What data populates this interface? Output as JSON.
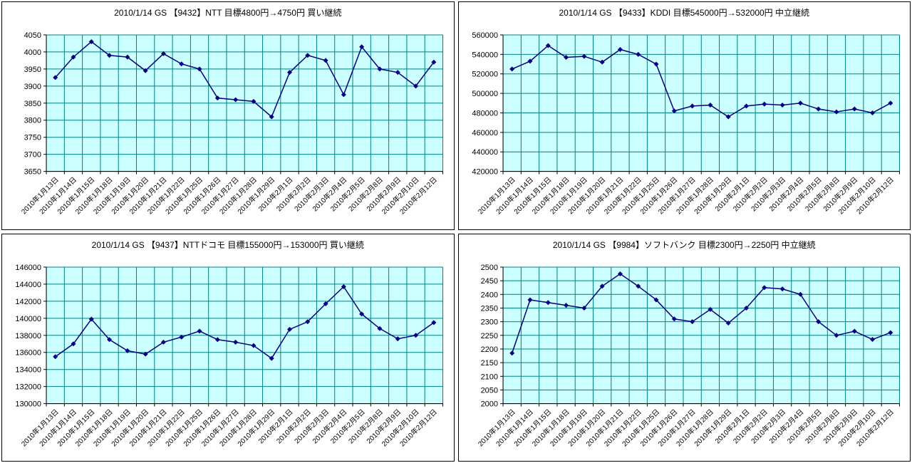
{
  "colors": {
    "plot_bg": "#CCFFFF",
    "grid": "#008080",
    "line": "#000080",
    "axis": "#000000",
    "panel_border": "#000000",
    "text": "#000000"
  },
  "chart_data": [
    {
      "type": "line",
      "title": "2010/1/14 GS 【9432】NTT 目標4800円→4750円 買い継続",
      "categories": [
        "2010年1月13日",
        "2010年1月14日",
        "2010年1月15日",
        "2010年1月18日",
        "2010年1月19日",
        "2010年1月20日",
        "2010年1月21日",
        "2010年1月22日",
        "2010年1月25日",
        "2010年1月26日",
        "2010年1月27日",
        "2010年1月28日",
        "2010年1月29日",
        "2010年2月1日",
        "2010年2月2日",
        "2010年2月3日",
        "2010年2月4日",
        "2010年2月5日",
        "2010年2月8日",
        "2010年2月9日",
        "2010年2月10日",
        "2010年2月12日"
      ],
      "values": [
        3925,
        3985,
        4030,
        3990,
        3985,
        3945,
        3995,
        3965,
        3950,
        3865,
        3860,
        3855,
        3810,
        3940,
        3990,
        3975,
        3875,
        4015,
        3950,
        3940,
        3900,
        3970
      ],
      "ylim": [
        3650,
        4050
      ],
      "ytick_step": 50,
      "xlabel": "",
      "ylabel": "",
      "grid": true,
      "legend": "none",
      "marker": "diamond"
    },
    {
      "type": "line",
      "title": "2010/1/14 GS 【9433】KDDI 目標545000円→532000円 中立継続",
      "categories": [
        "2010年1月13日",
        "2010年1月14日",
        "2010年1月15日",
        "2010年1月18日",
        "2010年1月19日",
        "2010年1月20日",
        "2010年1月21日",
        "2010年1月22日",
        "2010年1月25日",
        "2010年1月26日",
        "2010年1月27日",
        "2010年1月28日",
        "2010年1月29日",
        "2010年2月1日",
        "2010年2月2日",
        "2010年2月3日",
        "2010年2月4日",
        "2010年2月5日",
        "2010年2月8日",
        "2010年2月9日",
        "2010年2月10日",
        "2010年2月12日"
      ],
      "values": [
        525000,
        533000,
        549000,
        537000,
        538000,
        532000,
        545000,
        540000,
        530000,
        482000,
        487000,
        488000,
        476000,
        487000,
        489000,
        488000,
        490000,
        484000,
        481000,
        484000,
        480000,
        490000
      ],
      "ylim": [
        420000,
        560000
      ],
      "ytick_step": 20000,
      "xlabel": "",
      "ylabel": "",
      "grid": true,
      "legend": "none",
      "marker": "diamond"
    },
    {
      "type": "line",
      "title": "2010/1/14 GS 【9437】NTTドコモ 目標155000円→153000円 買い継続",
      "categories": [
        "2010年1月13日",
        "2010年1月14日",
        "2010年1月15日",
        "2010年1月18日",
        "2010年1月19日",
        "2010年1月20日",
        "2010年1月21日",
        "2010年1月22日",
        "2010年1月25日",
        "2010年1月26日",
        "2010年1月27日",
        "2010年1月28日",
        "2010年1月29日",
        "2010年2月1日",
        "2010年2月2日",
        "2010年2月3日",
        "2010年2月4日",
        "2010年2月5日",
        "2010年2月8日",
        "2010年2月9日",
        "2010年2月10日",
        "2010年2月12日"
      ],
      "values": [
        135500,
        137000,
        139900,
        137500,
        136200,
        135800,
        137200,
        137800,
        138500,
        137500,
        137200,
        136800,
        135300,
        138700,
        139600,
        141700,
        143700,
        140500,
        138800,
        137600,
        138000,
        139500
      ],
      "ylim": [
        130000,
        146000
      ],
      "ytick_step": 2000,
      "xlabel": "",
      "ylabel": "",
      "grid": true,
      "legend": "none",
      "marker": "diamond"
    },
    {
      "type": "line",
      "title": "2010/1/14 GS 【9984】ソフトバンク 目標2300円→2250円 中立継続",
      "categories": [
        "2010年1月13日",
        "2010年1月14日",
        "2010年1月15日",
        "2010年1月18日",
        "2010年1月19日",
        "2010年1月20日",
        "2010年1月21日",
        "2010年1月22日",
        "2010年1月25日",
        "2010年1月26日",
        "2010年1月27日",
        "2010年1月28日",
        "2010年1月29日",
        "2010年2月1日",
        "2010年2月2日",
        "2010年2月3日",
        "2010年2月4日",
        "2010年2月5日",
        "2010年2月8日",
        "2010年2月9日",
        "2010年2月10日",
        "2010年2月12日"
      ],
      "values": [
        2185,
        2380,
        2370,
        2360,
        2350,
        2430,
        2475,
        2430,
        2380,
        2310,
        2300,
        2345,
        2295,
        2350,
        2425,
        2420,
        2400,
        2300,
        2250,
        2265,
        2235,
        2260
      ],
      "ylim": [
        2000,
        2500
      ],
      "ytick_step": 50,
      "xlabel": "",
      "ylabel": "",
      "grid": true,
      "legend": "none",
      "marker": "diamond"
    }
  ]
}
